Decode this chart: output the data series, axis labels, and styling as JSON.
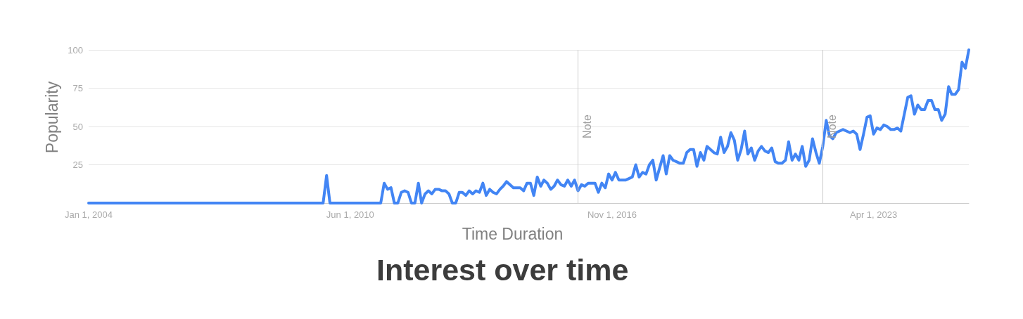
{
  "chart_data": {
    "type": "line",
    "title": "Interest over time",
    "xlabel": "Time Duration",
    "ylabel": "Popularity",
    "x": [
      "2004-01",
      "2009-10",
      "2009-11",
      "2009-12",
      "2011-03",
      "2011-04",
      "2011-05",
      "2011-06",
      "2011-07",
      "2011-08",
      "2011-09",
      "2011-10",
      "2011-11",
      "2011-12",
      "2012-01",
      "2012-02",
      "2012-03",
      "2012-04",
      "2012-05",
      "2012-06",
      "2012-07",
      "2012-08",
      "2012-09",
      "2012-10",
      "2012-11",
      "2012-12",
      "2013-01",
      "2013-02",
      "2013-03",
      "2013-04",
      "2013-05",
      "2013-06",
      "2013-07",
      "2013-08",
      "2013-09",
      "2013-10",
      "2013-11",
      "2013-12",
      "2014-01",
      "2014-02",
      "2014-03",
      "2014-04",
      "2014-05",
      "2014-06",
      "2014-07",
      "2014-08",
      "2014-09",
      "2014-10",
      "2014-11",
      "2014-12",
      "2015-01",
      "2015-02",
      "2015-03",
      "2015-04",
      "2015-05",
      "2015-06",
      "2015-07",
      "2015-08",
      "2015-09",
      "2015-10",
      "2015-11",
      "2015-12",
      "2016-01",
      "2016-02",
      "2016-03",
      "2016-04",
      "2016-05",
      "2016-06",
      "2016-07",
      "2016-08",
      "2016-09",
      "2016-10",
      "2016-11",
      "2016-12",
      "2017-01",
      "2017-02",
      "2017-03",
      "2017-04",
      "2017-05",
      "2017-06",
      "2017-07",
      "2017-08",
      "2017-09",
      "2017-10",
      "2017-11",
      "2017-12",
      "2018-01",
      "2018-02",
      "2018-03",
      "2018-04",
      "2018-05",
      "2018-06",
      "2018-07",
      "2018-08",
      "2018-09",
      "2018-10",
      "2018-11",
      "2018-12",
      "2019-01",
      "2019-02",
      "2019-03",
      "2019-04",
      "2019-05",
      "2019-06",
      "2019-07",
      "2019-08",
      "2019-09",
      "2019-10",
      "2019-11",
      "2019-12",
      "2020-01",
      "2020-02",
      "2020-03",
      "2020-04",
      "2020-05",
      "2020-06",
      "2020-07",
      "2020-08",
      "2020-09",
      "2020-10",
      "2020-11",
      "2020-12",
      "2021-01",
      "2021-02",
      "2021-03",
      "2021-04",
      "2021-05",
      "2021-06",
      "2021-07",
      "2021-08",
      "2021-09",
      "2021-10",
      "2021-11",
      "2021-12",
      "2022-01",
      "2022-02",
      "2022-03",
      "2022-04",
      "2022-05",
      "2022-06",
      "2022-07",
      "2022-08",
      "2022-09",
      "2022-10",
      "2022-11",
      "2022-12",
      "2023-01",
      "2023-02",
      "2023-03",
      "2023-04",
      "2023-05",
      "2023-06",
      "2023-07",
      "2023-08",
      "2023-09",
      "2023-10",
      "2023-11",
      "2023-12",
      "2024-01",
      "2024-02",
      "2024-03",
      "2024-04",
      "2024-05",
      "2024-06",
      "2024-07",
      "2024-08",
      "2024-09",
      "2024-10",
      "2024-11",
      "2024-12",
      "2025-01",
      "2025-02",
      "2025-03",
      "2025-04",
      "2025-05",
      "2025-06",
      "2025-07",
      "2025-08"
    ],
    "values": [
      0,
      0,
      18,
      0,
      0,
      13,
      9,
      10,
      0,
      0,
      7,
      8,
      7,
      0,
      0,
      13,
      0,
      6,
      8,
      6,
      9,
      9,
      8,
      8,
      6,
      0,
      0,
      7,
      7,
      5,
      8,
      6,
      8,
      7,
      13,
      5,
      9,
      7,
      6,
      9,
      11,
      14,
      12,
      10,
      10,
      10,
      8,
      13,
      13,
      5,
      17,
      11,
      15,
      13,
      9,
      11,
      15,
      12,
      11,
      15,
      11,
      15,
      8,
      12,
      11,
      13,
      13,
      13,
      7,
      13,
      10,
      19,
      15,
      20,
      15,
      15,
      15,
      16,
      17,
      25,
      17,
      20,
      19,
      25,
      28,
      15,
      23,
      31,
      19,
      31,
      28,
      27,
      26,
      26,
      33,
      35,
      35,
      24,
      33,
      28,
      37,
      35,
      33,
      32,
      43,
      33,
      37,
      46,
      41,
      28,
      35,
      47,
      32,
      36,
      28,
      34,
      37,
      34,
      33,
      36,
      27,
      26,
      26,
      28,
      40,
      28,
      32,
      28,
      37,
      24,
      28,
      42,
      33,
      26,
      37,
      54,
      44,
      42,
      46,
      47,
      48,
      47,
      46,
      47,
      45,
      35,
      45,
      56,
      57,
      45,
      49,
      48,
      51,
      50,
      48,
      48,
      49,
      47,
      58,
      69,
      70,
      58,
      64,
      61,
      61,
      67,
      67,
      61,
      61,
      54,
      58,
      76,
      71,
      71,
      74,
      92,
      88,
      100
    ],
    "color": "#4285f4",
    "xlim": [
      "2004-01",
      "2025-08"
    ],
    "xticks": [
      {
        "value": "2004-01-01",
        "label": "Jan 1, 2004"
      },
      {
        "value": "2010-06-01",
        "label": "Jun 1, 2010"
      },
      {
        "value": "2016-11-01",
        "label": "Nov 1, 2016"
      },
      {
        "value": "2023-04-01",
        "label": "Apr 1, 2023"
      }
    ],
    "ylim": [
      0,
      100
    ],
    "yticks": [
      25,
      50,
      75,
      100
    ],
    "grid": "y",
    "marker": "none",
    "line_style": "solid",
    "ref_lines": [
      {
        "axis": "x",
        "value": "2016-01",
        "label": "Note",
        "color": "#cccccc"
      },
      {
        "axis": "x",
        "value": "2022-01",
        "label": "Note",
        "color": "#cccccc"
      }
    ]
  }
}
